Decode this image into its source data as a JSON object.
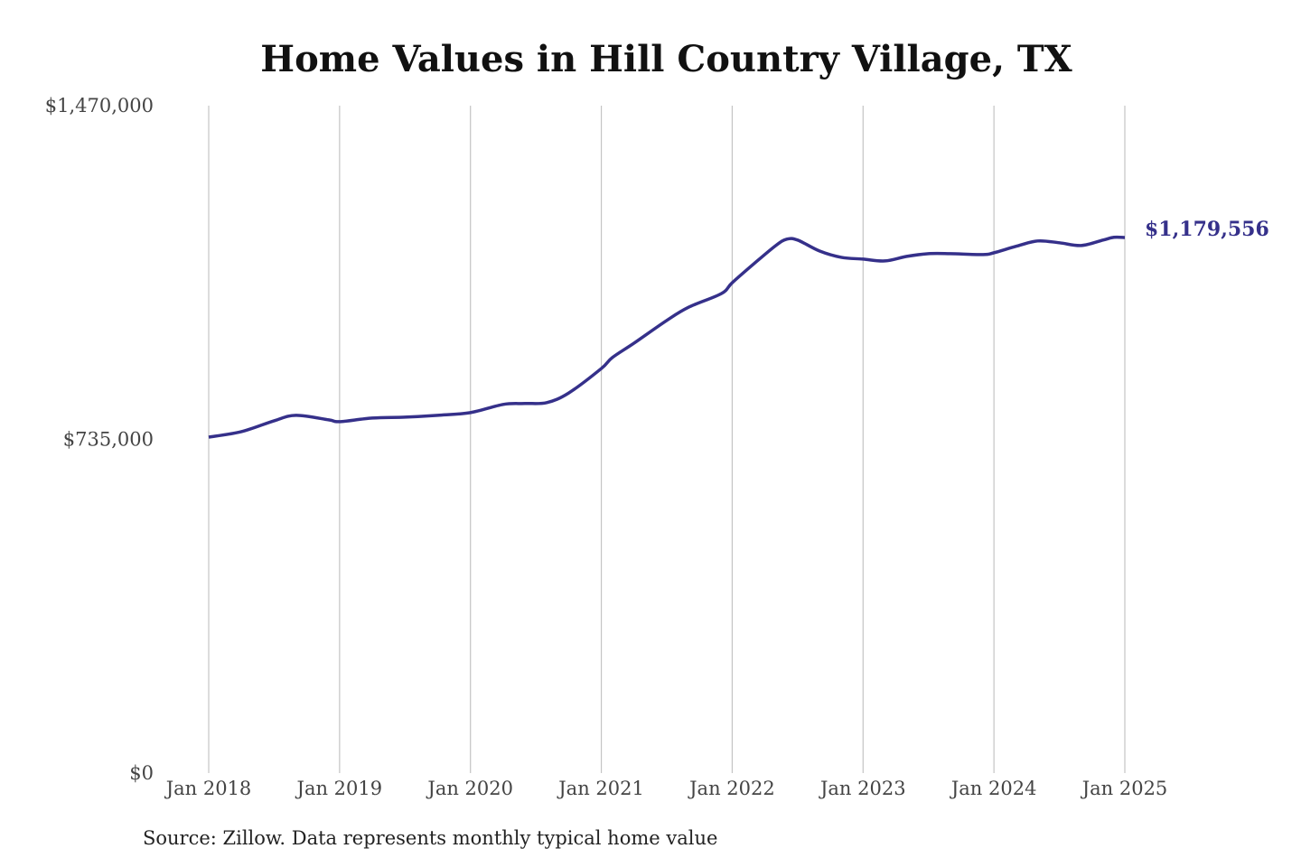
{
  "chart_data": {
    "type": "line",
    "title": "Home Values in Hill Country Village, TX",
    "xlabel": "",
    "ylabel": "",
    "ylim": [
      0,
      1470000
    ],
    "y_ticks": [
      0,
      735000,
      1470000
    ],
    "y_tick_labels": [
      "$0",
      "$735,000",
      "$1,470,000"
    ],
    "x_ticks": [
      "2018-01",
      "2019-01",
      "2020-01",
      "2021-01",
      "2022-01",
      "2023-01",
      "2024-01",
      "2025-01"
    ],
    "x_tick_labels": [
      "Jan 2018",
      "Jan 2019",
      "Jan 2020",
      "Jan 2021",
      "Jan 2022",
      "Jan 2023",
      "Jan 2024",
      "Jan 2025"
    ],
    "grid": "vertical lines at x ticks",
    "line_color": "#35308a",
    "end_label": "$1,179,556",
    "series": [
      {
        "x": [
          "2018-01",
          "2018-04",
          "2018-07",
          "2018-09",
          "2018-12",
          "2019-01",
          "2019-04",
          "2019-07",
          "2019-10",
          "2020-01",
          "2020-04",
          "2020-06",
          "2020-08",
          "2020-10",
          "2021-01",
          "2021-02",
          "2021-04",
          "2021-07",
          "2021-09",
          "2021-12",
          "2022-01",
          "2022-03",
          "2022-05",
          "2022-06",
          "2022-07",
          "2022-09",
          "2022-11",
          "2023-01",
          "2023-03",
          "2023-05",
          "2023-07",
          "2023-09",
          "2023-12",
          "2024-01",
          "2024-03",
          "2024-05",
          "2024-07",
          "2024-09",
          "2024-11",
          "2024-12",
          "2025-01"
        ],
        "values": [
          740000,
          752000,
          776000,
          788000,
          778000,
          774000,
          782000,
          784000,
          788000,
          794000,
          812000,
          814000,
          816000,
          837000,
          891000,
          915000,
          947000,
          997000,
          1026000,
          1056000,
          1080000,
          1122000,
          1162000,
          1176000,
          1174000,
          1150000,
          1136000,
          1132000,
          1128000,
          1138000,
          1144000,
          1144000,
          1142000,
          1146000,
          1160000,
          1172000,
          1168000,
          1162000,
          1174000,
          1180000,
          1179556
        ]
      }
    ]
  },
  "source": "Source: Zillow. Data represents monthly typical home value"
}
